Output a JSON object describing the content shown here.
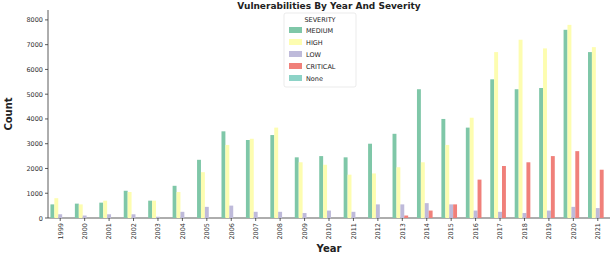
{
  "chart_data": {
    "type": "bar",
    "title": "Vulnerabilities By Year And Severity",
    "x_label": "Year",
    "y_label": "Count",
    "legend_title": "SEVERITY",
    "categories": [
      "1999",
      "2000",
      "2001",
      "2002",
      "2003",
      "2004",
      "2005",
      "2006",
      "2007",
      "2008",
      "2009",
      "2010",
      "2011",
      "2012",
      "2013",
      "2014",
      "2015",
      "2016",
      "2017",
      "2018",
      "2019",
      "2020",
      "2021"
    ],
    "series": [
      {
        "name": "MEDIUM",
        "color": "#7fc7a8",
        "values": [
          550,
          580,
          620,
          1100,
          700,
          1300,
          2350,
          3500,
          3150,
          3350,
          2450,
          2500,
          2450,
          3000,
          3400,
          5200,
          4000,
          3650,
          5600,
          5200,
          5250,
          7600,
          6700
        ]
      },
      {
        "name": "HIGH",
        "color": "#fdfdb0",
        "values": [
          800,
          550,
          700,
          1050,
          700,
          1050,
          1850,
          2950,
          3200,
          3650,
          2250,
          2150,
          1750,
          1800,
          2050,
          2250,
          2950,
          4050,
          6700,
          7200,
          6850,
          7800,
          6900
        ]
      },
      {
        "name": "LOW",
        "color": "#bebada",
        "values": [
          150,
          100,
          150,
          150,
          50,
          250,
          450,
          500,
          250,
          250,
          200,
          300,
          250,
          550,
          550,
          600,
          550,
          300,
          250,
          200,
          300,
          450,
          400
        ]
      },
      {
        "name": "CRITICAL",
        "color": "#f0807a",
        "values": [
          0,
          0,
          0,
          0,
          0,
          0,
          0,
          0,
          0,
          0,
          0,
          0,
          0,
          0,
          100,
          300,
          550,
          1550,
          2100,
          2250,
          2500,
          2700,
          1950
        ]
      },
      {
        "name": "None",
        "color": "#8dd3c7",
        "values": [
          0,
          0,
          0,
          0,
          0,
          0,
          0,
          0,
          0,
          0,
          0,
          0,
          0,
          0,
          0,
          0,
          0,
          0,
          0,
          0,
          0,
          0,
          0
        ]
      }
    ],
    "ylim": [
      0,
      8400
    ],
    "yticks": [
      0,
      1000,
      2000,
      3000,
      4000,
      5000,
      6000,
      7000,
      8000
    ],
    "legend": "upper center",
    "grid": false
  }
}
